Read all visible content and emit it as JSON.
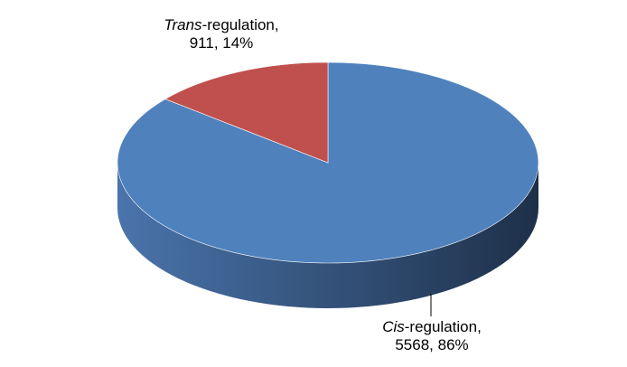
{
  "chart_data": {
    "type": "pie",
    "title": "",
    "three_d": true,
    "slices": [
      {
        "label_italic": "Cis",
        "label_rest": "-regulation,",
        "value": 5568,
        "value_text": "5568",
        "percent_text": "86%",
        "color": "#4F81BD",
        "side_dark": "#1F324E",
        "side_light": "#4A74AC"
      },
      {
        "label_italic": "Trans",
        "label_rest": "-regulation,",
        "value": 911,
        "value_text": "911",
        "percent_text": "14%",
        "color": "#C0504D",
        "side_dark": "#6E2B29",
        "side_light": "#A94643"
      }
    ],
    "legend": "none"
  }
}
